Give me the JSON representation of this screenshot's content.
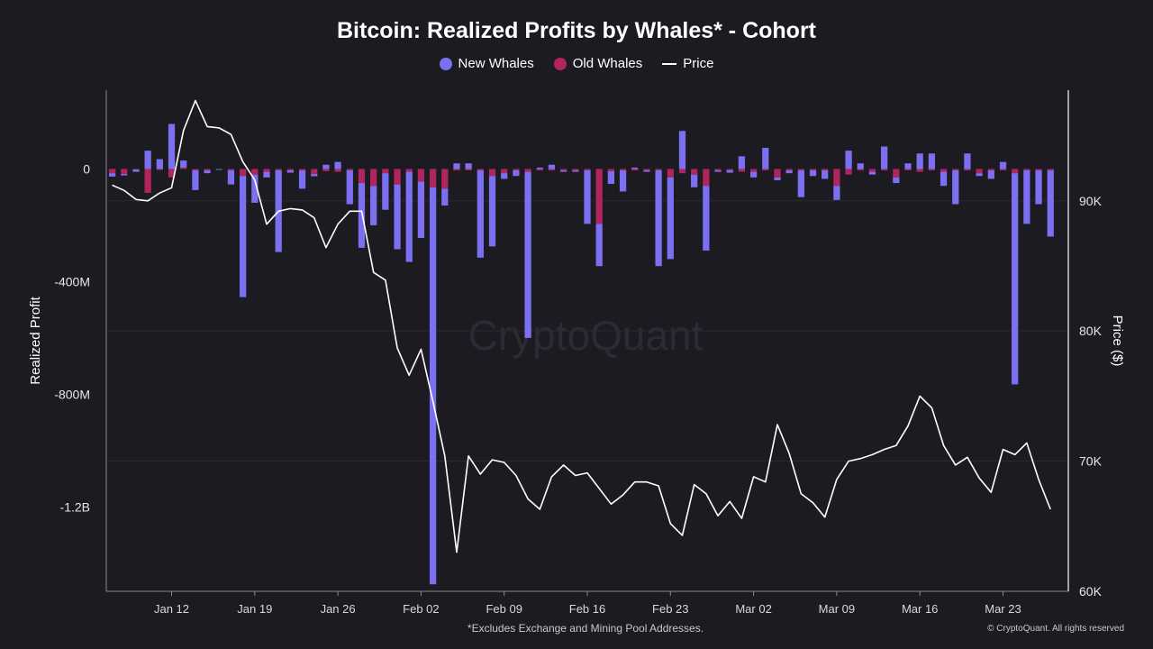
{
  "chart_data": {
    "type": "bar+line",
    "title": "Bitcoin: Realized Profits by Whales* - Cohort",
    "legend": [
      {
        "name": "New Whales",
        "color": "#7b6ff2"
      },
      {
        "name": "Old Whales",
        "color": "#b0255e"
      },
      {
        "name": "Price",
        "color": "#ffffff"
      }
    ],
    "ylabel_left": "Realized Profit",
    "ylabel_right": "Price ($)",
    "left_ticks": [
      {
        "value": 0,
        "label": "0"
      },
      {
        "value": -400,
        "label": "-400M"
      },
      {
        "value": -800,
        "label": "-800M"
      },
      {
        "value": -1200,
        "label": "-1.2B"
      }
    ],
    "right_ticks": [
      {
        "value": 90,
        "label": "90K"
      },
      {
        "value": 80,
        "label": "80K"
      },
      {
        "value": 70,
        "label": "70K"
      },
      {
        "value": 60,
        "label": "60K"
      }
    ],
    "left_ylim_millions": [
      -1500,
      280
    ],
    "right_ylim_thousands": [
      60,
      98.5
    ],
    "x_tick_labels": [
      {
        "day": 5,
        "label": "Jan 12"
      },
      {
        "day": 12,
        "label": "Jan 19"
      },
      {
        "day": 19,
        "label": "Jan 26"
      },
      {
        "day": 26,
        "label": "Feb 02"
      },
      {
        "day": 33,
        "label": "Feb 09"
      },
      {
        "day": 40,
        "label": "Feb 16"
      },
      {
        "day": 47,
        "label": "Feb 23"
      },
      {
        "day": 54,
        "label": "Mar 02"
      },
      {
        "day": 61,
        "label": "Mar 09"
      },
      {
        "day": 68,
        "label": "Mar 16"
      },
      {
        "day": 75,
        "label": "Mar 23"
      }
    ],
    "day_range": [
      -0.5,
      80.5
    ],
    "series": [
      {
        "name": "New Whales",
        "unit": "USD millions",
        "values": [
          -12,
          -5,
          -8,
          65,
          35,
          160,
          25,
          -70,
          -10,
          0,
          -50,
          -430,
          -100,
          -20,
          -290,
          -8,
          -65,
          -8,
          15,
          25,
          -120,
          -230,
          -140,
          -130,
          -230,
          -320,
          -200,
          -1410,
          -60,
          20,
          20,
          -310,
          -250,
          -20,
          -20,
          -590,
          5,
          15,
          -5,
          -5,
          -190,
          -150,
          -45,
          -75,
          5,
          -5,
          -340,
          -290,
          135,
          -45,
          -230,
          -5,
          -8,
          45,
          -20,
          75,
          -10,
          -10,
          -95,
          -20,
          -30,
          -50,
          65,
          20,
          -10,
          80,
          -20,
          20,
          55,
          55,
          -50,
          -120,
          55,
          -10,
          -30,
          25,
          -750,
          -190,
          -120,
          -235
        ],
        "old_values": [
          -15,
          -18,
          -2,
          -85,
          -2,
          -30,
          5,
          -5,
          -5,
          0,
          -5,
          -25,
          -20,
          -10,
          -5,
          -5,
          -5,
          -18,
          -8,
          -10,
          -5,
          -50,
          -60,
          -15,
          -55,
          -10,
          -45,
          -65,
          -70,
          -5,
          -5,
          -5,
          -25,
          -15,
          -5,
          -10,
          -5,
          -5,
          -5,
          -5,
          -5,
          -195,
          -8,
          -5,
          -5,
          -5,
          -5,
          -30,
          -15,
          -20,
          -60,
          -5,
          -5,
          -10,
          -10,
          -5,
          -30,
          -5,
          -5,
          -5,
          -5,
          -60,
          -20,
          -5,
          -10,
          -5,
          -30,
          -5,
          -10,
          -5,
          -10,
          -5,
          -5,
          -15,
          -5,
          -5,
          -15,
          -5,
          -5,
          -5
        ]
      },
      {
        "name": "Price",
        "unit": "USD thousands",
        "values": [
          91.2,
          90.8,
          90.1,
          90.0,
          90.6,
          91.0,
          95.4,
          97.7,
          95.7,
          95.6,
          95.1,
          93.0,
          91.6,
          88.2,
          89.2,
          89.4,
          89.3,
          88.7,
          86.4,
          88.2,
          89.2,
          89.2,
          84.5,
          83.9,
          78.7,
          76.6,
          78.6,
          74.6,
          70.4,
          63.0,
          70.4,
          69.0,
          70.1,
          69.9,
          68.9,
          67.1,
          66.3,
          68.8,
          69.7,
          68.9,
          69.1,
          67.9,
          66.7,
          67.4,
          68.4,
          68.4,
          68.1,
          65.2,
          64.3,
          68.2,
          67.5,
          65.8,
          66.9,
          65.6,
          68.8,
          68.4,
          72.8,
          70.6,
          67.5,
          66.8,
          65.7,
          68.6,
          70.0,
          70.2,
          70.5,
          70.9,
          71.2,
          72.7,
          75.0,
          74.1,
          71.2,
          69.7,
          70.3,
          68.7,
          67.6,
          70.9,
          70.5,
          71.4,
          68.6,
          66.3
        ]
      }
    ],
    "watermark": "CryptoQuant",
    "footnote": "*Excludes Exchange and Mining Pool Addresses.",
    "copyright": "© CryptoQuant. All rights reserved"
  }
}
